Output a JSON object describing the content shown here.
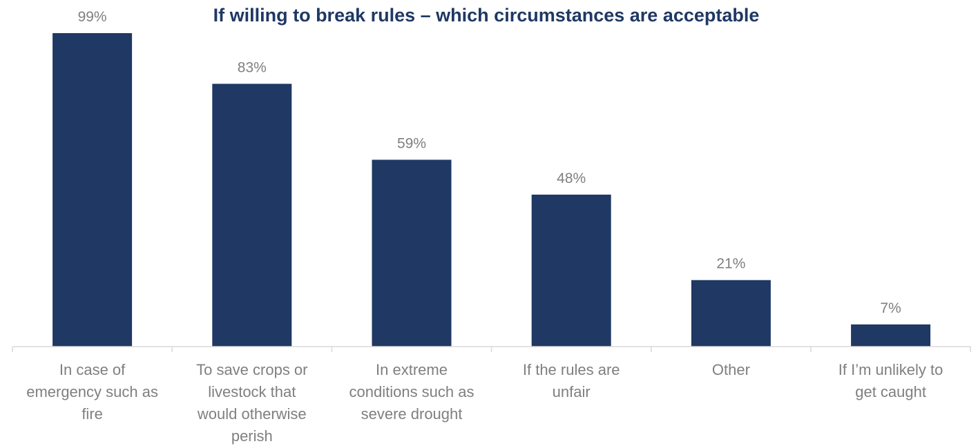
{
  "chart_data": {
    "type": "bar",
    "title": "If willing to break rules – which circumstances are acceptable",
    "categories": [
      "In case of emergency such as fire",
      "To save crops or livestock that would otherwise perish",
      "In extreme conditions such as severe drought",
      "If the rules are unfair",
      "Other",
      "If I’m unlikely to get caught"
    ],
    "category_lines": [
      [
        "In case of",
        "emergency such as",
        "fire"
      ],
      [
        "To save crops or",
        "livestock that",
        "would otherwise",
        "perish"
      ],
      [
        "In extreme",
        "conditions such as",
        "severe drought"
      ],
      [
        "If the rules are",
        "unfair"
      ],
      [
        "Other"
      ],
      [
        "If I’m unlikely to",
        "get caught"
      ]
    ],
    "values": [
      99,
      83,
      59,
      48,
      21,
      7
    ],
    "value_labels": [
      "99%",
      "83%",
      "59%",
      "48%",
      "21%",
      "7%"
    ],
    "unit": "%",
    "ylim": [
      0,
      99
    ],
    "grid": false,
    "legend": "none",
    "colors": {
      "bar": "#1f3864",
      "title": "#1f3864",
      "labels": "#7f7f7f",
      "axis": "#d9d9d9"
    }
  }
}
